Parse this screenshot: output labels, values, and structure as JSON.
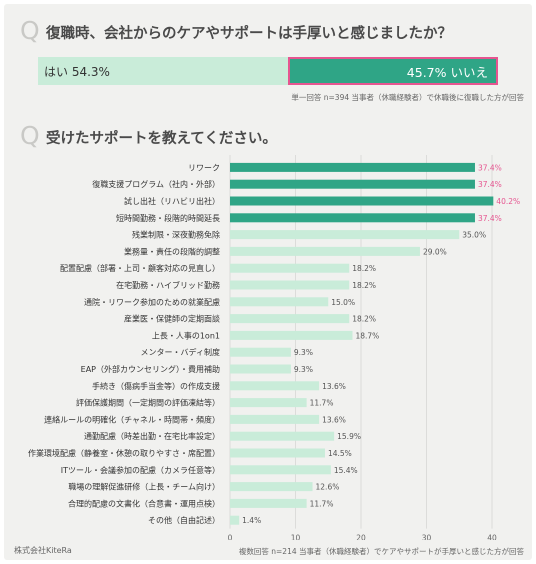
{
  "q1": {
    "mark": "Q",
    "title": "復職時、会社からのケアやサポートは手厚いと感じましたか？",
    "yes_label": "はい 54.3%",
    "no_label": "45.7% いいえ",
    "yes_value": 54.3,
    "no_value": 45.7,
    "note": "単一回答 n=394 当事者（休職経験者）で休職後に復職した方が回答"
  },
  "q2": {
    "mark": "Q",
    "title": "受けたサポートを教えてください。",
    "note": "複数回答 n=214 当事者（休職経験者）でケアやサポートが手厚いと感じた方が回答"
  },
  "footer": {
    "company": "株式会社KiteRa"
  },
  "colors": {
    "highlight_bar": "#2fa586",
    "normal_bar": "#c9ecd9",
    "highlight_label": "#e65590",
    "normal_label": "#555555"
  },
  "chart_data": {
    "type": "bar",
    "orientation": "horizontal",
    "categories": [
      "リワーク",
      "復職支援プログラム（社内・外部）",
      "試し出社（リハビリ出社）",
      "短時間勤務・段階的時間延長",
      "残業制限・深夜勤務免除",
      "業務量・責任の段階的調整",
      "配置配慮（部署・上司・顧客対応の見直し）",
      "在宅勤務・ハイブリッド勤務",
      "通院・リワーク参加のための就業配慮",
      "産業医・保健師の定期面談",
      "上長・人事の1on1",
      "メンター・バディ制度",
      "EAP（外部カウンセリング）・費用補助",
      "手続き（傷病手当金等）の作成支援",
      "評価保護期間（一定期間の評価凍結等）",
      "連絡ルールの明確化（チャネル・時間帯・頻度）",
      "通勤配慮（時差出勤・在宅比率設定）",
      "作業環境配慮（静養室・休憩の取りやすさ・席配置）",
      "ITツール・会議参加の配慮（カメラ任意等）",
      "職場の理解促進研修（上長・チーム向け）",
      "合理的配慮の文書化（合意書・運用点検）",
      "その他（自由記述）"
    ],
    "values": [
      37.4,
      37.4,
      40.2,
      37.4,
      35.0,
      29.0,
      18.2,
      18.2,
      15.0,
      18.2,
      18.7,
      9.3,
      9.3,
      13.6,
      11.7,
      13.6,
      15.9,
      14.5,
      15.4,
      12.6,
      11.7,
      1.4
    ],
    "value_labels": [
      "37.4%",
      "37.4%",
      "40.2%",
      "37.4%",
      "35.0%",
      "29.0%",
      "18.2%",
      "18.2%",
      "15.0%",
      "18.2%",
      "18.7%",
      "9.3%",
      "9.3%",
      "13.6%",
      "11.7%",
      "13.6%",
      "15.9%",
      "14.5%",
      "15.4%",
      "12.6%",
      "11.7%",
      "1.4%"
    ],
    "highlighted": [
      true,
      true,
      true,
      true,
      false,
      false,
      false,
      false,
      false,
      false,
      false,
      false,
      false,
      false,
      false,
      false,
      false,
      false,
      false,
      false,
      false,
      false
    ],
    "xlim": [
      0,
      40
    ],
    "xticks": [
      "0",
      "10",
      "20",
      "30",
      "40"
    ],
    "xlabel": "",
    "ylabel": "",
    "grid": true
  }
}
